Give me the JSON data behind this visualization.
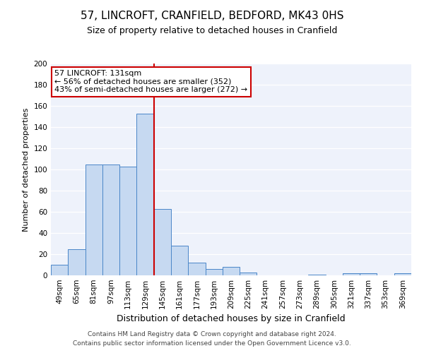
{
  "title": "57, LINCROFT, CRANFIELD, BEDFORD, MK43 0HS",
  "subtitle": "Size of property relative to detached houses in Cranfield",
  "xlabel": "Distribution of detached houses by size in Cranfield",
  "ylabel": "Number of detached properties",
  "bar_labels": [
    "49sqm",
    "65sqm",
    "81sqm",
    "97sqm",
    "113sqm",
    "129sqm",
    "145sqm",
    "161sqm",
    "177sqm",
    "193sqm",
    "209sqm",
    "225sqm",
    "241sqm",
    "257sqm",
    "273sqm",
    "289sqm",
    "305sqm",
    "321sqm",
    "337sqm",
    "353sqm",
    "369sqm"
  ],
  "bar_values": [
    10,
    25,
    105,
    105,
    103,
    153,
    63,
    28,
    12,
    6,
    8,
    3,
    0,
    0,
    0,
    1,
    0,
    2,
    2,
    0,
    2
  ],
  "bar_color": "#c6d9f1",
  "bar_edge_color": "#4a86c8",
  "vline_x": 5.5,
  "vline_color": "#cc0000",
  "annotation_text": "57 LINCROFT: 131sqm\n← 56% of detached houses are smaller (352)\n43% of semi-detached houses are larger (272) →",
  "annotation_box_color": "#ffffff",
  "annotation_box_edge": "#cc0000",
  "ylim": [
    0,
    200
  ],
  "yticks": [
    0,
    20,
    40,
    60,
    80,
    100,
    120,
    140,
    160,
    180,
    200
  ],
  "footer_line1": "Contains HM Land Registry data © Crown copyright and database right 2024.",
  "footer_line2": "Contains public sector information licensed under the Open Government Licence v3.0.",
  "title_fontsize": 11,
  "subtitle_fontsize": 9,
  "xlabel_fontsize": 9,
  "ylabel_fontsize": 8,
  "tick_fontsize": 7.5,
  "footer_fontsize": 6.5,
  "annotation_fontsize": 8
}
